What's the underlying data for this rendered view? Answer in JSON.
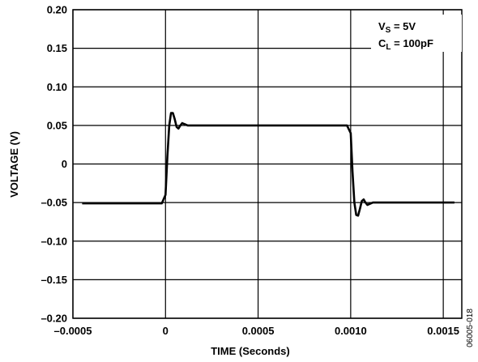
{
  "chart_data": {
    "type": "line",
    "xlabel": "TIME (Seconds)",
    "ylabel": "VOLTAGE (V)",
    "xlim": [
      -0.0005,
      0.0016
    ],
    "ylim": [
      -0.2,
      0.2
    ],
    "x_ticks": [
      -0.0005,
      0,
      0.0005,
      0.001,
      0.0015
    ],
    "x_tick_labels": [
      "–0.0005",
      "0",
      "0.0005",
      "0.0010",
      "0.0015"
    ],
    "y_ticks": [
      0.2,
      0.15,
      0.1,
      0.05,
      0,
      -0.05,
      -0.1,
      -0.15,
      -0.2
    ],
    "y_tick_labels": [
      "0.20",
      "0.15",
      "0.10",
      "0.05",
      "0",
      "–0.05",
      "–0.10",
      "–0.15",
      "–0.20"
    ],
    "grid": true,
    "legend": {
      "placement": "top-right",
      "lines": [
        {
          "main": "V",
          "sub": "S",
          "rest": " = 5V"
        },
        {
          "main": "C",
          "sub": "L",
          "rest": " = 100pF"
        }
      ]
    },
    "series": [
      {
        "x": [
          -0.00045,
          -0.0003,
          -0.0001,
          -2e-05,
          0.0,
          1e-05,
          2e-05,
          3e-05,
          4e-05,
          5e-05,
          6e-05,
          7e-05,
          8e-05,
          9e-05,
          0.0001,
          0.00012,
          0.00014,
          0.00016,
          0.0002,
          0.0005,
          0.0008,
          0.00098,
          0.001,
          0.00101,
          0.00102,
          0.00103,
          0.00104,
          0.00105,
          0.00106,
          0.00107,
          0.00108,
          0.00109,
          0.0011,
          0.00112,
          0.00114,
          0.00116,
          0.0012,
          0.0014,
          0.00156
        ],
        "y": [
          -0.051,
          -0.051,
          -0.051,
          -0.051,
          -0.04,
          0.01,
          0.05,
          0.066,
          0.066,
          0.058,
          0.048,
          0.046,
          0.05,
          0.053,
          0.052,
          0.05,
          0.05,
          0.05,
          0.05,
          0.05,
          0.05,
          0.05,
          0.04,
          -0.01,
          -0.05,
          -0.066,
          -0.067,
          -0.058,
          -0.048,
          -0.046,
          -0.05,
          -0.053,
          -0.052,
          -0.05,
          -0.05,
          -0.05,
          -0.05,
          -0.05,
          -0.05
        ]
      }
    ]
  },
  "figure_id": "06005-018"
}
